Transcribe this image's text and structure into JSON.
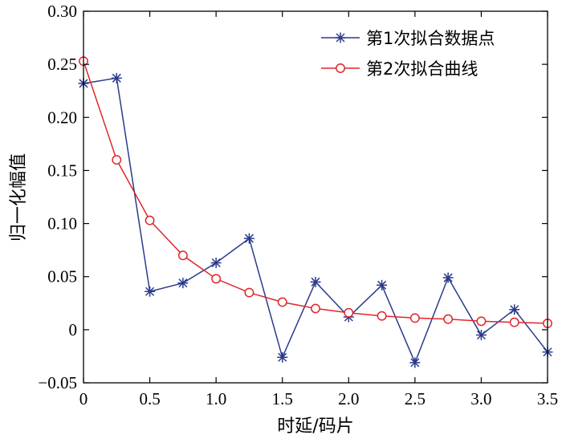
{
  "chart_data": {
    "type": "line",
    "xlabel": "时延/码片",
    "ylabel": "归一化幅值",
    "xlim": [
      0,
      3.5
    ],
    "ylim": [
      -0.05,
      0.3
    ],
    "xticks": [
      "0",
      "0.5",
      "1.0",
      "1.5",
      "2.0",
      "2.5",
      "3.0",
      "3.5"
    ],
    "xtick_values": [
      0,
      0.5,
      1.0,
      1.5,
      2.0,
      2.5,
      3.0,
      3.5
    ],
    "yticks": [
      "−0.05",
      "0",
      "0.05",
      "0.10",
      "0.15",
      "0.20",
      "0.25",
      "0.30"
    ],
    "ytick_values": [
      -0.05,
      0,
      0.05,
      0.1,
      0.15,
      0.2,
      0.25,
      0.3
    ],
    "grid": false,
    "legend_position": "top-right",
    "x": [
      0,
      0.25,
      0.5,
      0.75,
      1.0,
      1.25,
      1.5,
      1.75,
      2.0,
      2.25,
      2.5,
      2.75,
      3.0,
      3.25,
      3.5
    ],
    "series": [
      {
        "name": "第1次拟合数据点",
        "color": "#2b3a8c",
        "marker": "star",
        "values": [
          0.232,
          0.237,
          0.036,
          0.044,
          0.063,
          0.086,
          -0.026,
          0.045,
          0.012,
          0.042,
          -0.031,
          0.049,
          -0.005,
          0.019,
          -0.021
        ]
      },
      {
        "name": "第2次拟合曲线",
        "color": "#e0262b",
        "marker": "circle",
        "values": [
          0.253,
          0.16,
          0.103,
          0.07,
          0.048,
          0.035,
          0.026,
          0.02,
          0.016,
          0.013,
          0.011,
          0.01,
          0.008,
          0.007,
          0.006
        ]
      }
    ]
  }
}
